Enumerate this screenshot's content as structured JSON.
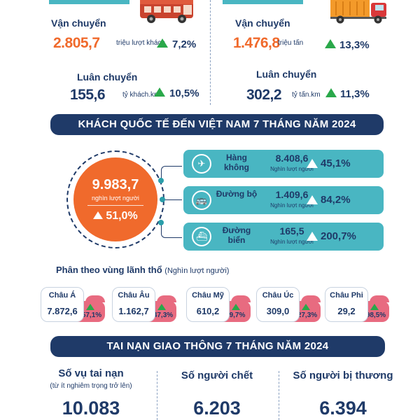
{
  "colors": {
    "navy": "#1f3a68",
    "orange": "#f06a2c",
    "teal": "#49b6c2",
    "green_up": "#2aa84a",
    "pink": "#e86b80"
  },
  "passenger": {
    "icon": "bus-icon",
    "transport_label": "Vận chuyển",
    "transport_value": "2.805,7",
    "transport_unit": "triệu lượt khách",
    "transport_pct": "7,2%",
    "rotation_label": "Luân chuyển",
    "rotation_value": "155,6",
    "rotation_unit": "tỷ khách.km",
    "rotation_pct": "10,5%"
  },
  "freight": {
    "icon": "truck-icon",
    "transport_label": "Vận chuyển",
    "transport_value": "1.476,8",
    "transport_unit": "triệu tấn",
    "transport_pct": "13,3%",
    "rotation_label": "Luân chuyển",
    "rotation_value": "302,2",
    "rotation_unit": "tỷ tấn.km",
    "rotation_pct": "11,3%"
  },
  "visitors": {
    "title": "KHÁCH QUỐC TẾ ĐẾN VIỆT NAM 7 THÁNG NĂM 2024",
    "total_value": "9.983,7",
    "total_unit": "nghìn lượt người",
    "total_pct": "51,0%",
    "modes": [
      {
        "icon": "plane-icon",
        "name": "Hàng không",
        "value": "8.408,6",
        "unit": "Nghìn lượt người",
        "pct": "45,1%"
      },
      {
        "icon": "car-icon",
        "name": "Đường bộ",
        "value": "1.409,6",
        "unit": "Nghìn lượt người",
        "pct": "84,2%"
      },
      {
        "icon": "ship-icon",
        "name": "Đường biển",
        "value": "165,5",
        "unit": "Nghìn lượt người",
        "pct": "200,7%"
      }
    ],
    "region_title": "Phân theo vùng lãnh thổ",
    "region_unit": "(Nghìn lượt người)",
    "regions": [
      {
        "name": "Châu Á",
        "value": "7.872,6",
        "pct": "57,1%"
      },
      {
        "name": "Châu Âu",
        "value": "1.162,7",
        "pct": "47,3%"
      },
      {
        "name": "Châu Mỹ",
        "value": "610,2",
        "pct": "9,7%"
      },
      {
        "name": "Châu Úc",
        "value": "309,0",
        "pct": "27,3%"
      },
      {
        "name": "Châu Phi",
        "value": "29,2",
        "pct": "98,5%"
      }
    ]
  },
  "accidents": {
    "title": "TAI NẠN GIAO THÔNG 7 THÁNG NĂM 2024",
    "items": [
      {
        "label": "Số vụ tai nạn",
        "sub": "(từ ít nghiêm trọng trở lên)",
        "value": "10.083"
      },
      {
        "label": "Số người chết",
        "sub": "",
        "value": "6.203"
      },
      {
        "label": "Số người bị thương",
        "sub": "",
        "value": "6.394"
      }
    ]
  }
}
